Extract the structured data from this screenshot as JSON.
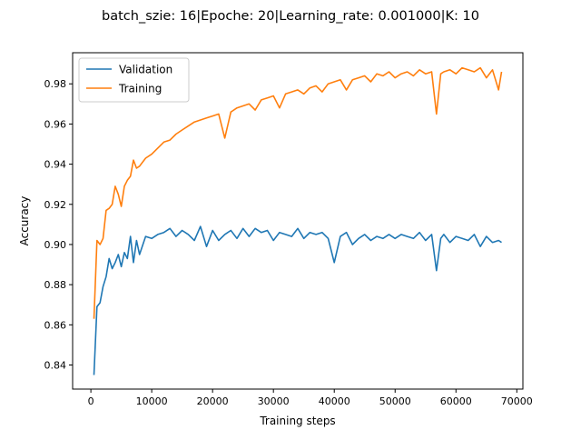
{
  "chart_data": {
    "type": "line",
    "title": "batch_szie: 16|Epoche: 20|Learning_rate: 0.001000|K: 10",
    "xlabel": "Training steps",
    "ylabel": "Accuracy",
    "xlim": [
      -3000,
      71000
    ],
    "ylim": [
      0.828,
      0.9955
    ],
    "xticks": [
      0,
      10000,
      20000,
      30000,
      40000,
      50000,
      60000,
      70000
    ],
    "xtick_labels": [
      "0",
      "10000",
      "20000",
      "30000",
      "40000",
      "50000",
      "60000",
      "70000"
    ],
    "yticks": [
      0.84,
      0.86,
      0.88,
      0.9,
      0.92,
      0.94,
      0.96,
      0.98
    ],
    "ytick_labels": [
      "0.84",
      "0.86",
      "0.88",
      "0.90",
      "0.92",
      "0.94",
      "0.96",
      "0.98"
    ],
    "grid": false,
    "legend_position": "upper-left",
    "series": [
      {
        "name": "Validation",
        "color": "#1f77b4",
        "x": [
          500,
          1000,
          1500,
          2000,
          2500,
          3000,
          3500,
          4000,
          4500,
          5000,
          5500,
          6000,
          6500,
          7000,
          7500,
          8000,
          9000,
          10000,
          11000,
          12000,
          13000,
          14000,
          15000,
          16000,
          17000,
          18000,
          19000,
          20000,
          21000,
          22000,
          23000,
          24000,
          25000,
          26000,
          27000,
          28000,
          29000,
          30000,
          31000,
          32000,
          33000,
          34000,
          35000,
          36000,
          37000,
          38000,
          39000,
          40000,
          41000,
          42000,
          43000,
          44000,
          45000,
          46000,
          47000,
          48000,
          49000,
          50000,
          51000,
          52000,
          53000,
          54000,
          55000,
          56000,
          56800,
          57500,
          58000,
          59000,
          60000,
          61000,
          62000,
          63000,
          64000,
          65000,
          66000,
          67000,
          67500
        ],
        "y": [
          0.835,
          0.869,
          0.871,
          0.879,
          0.884,
          0.893,
          0.888,
          0.891,
          0.895,
          0.889,
          0.896,
          0.893,
          0.904,
          0.891,
          0.902,
          0.895,
          0.904,
          0.903,
          0.905,
          0.906,
          0.908,
          0.904,
          0.907,
          0.905,
          0.902,
          0.909,
          0.899,
          0.907,
          0.902,
          0.905,
          0.907,
          0.903,
          0.908,
          0.904,
          0.908,
          0.906,
          0.907,
          0.902,
          0.906,
          0.905,
          0.904,
          0.908,
          0.903,
          0.906,
          0.905,
          0.906,
          0.903,
          0.891,
          0.904,
          0.906,
          0.9,
          0.903,
          0.905,
          0.902,
          0.904,
          0.903,
          0.905,
          0.903,
          0.905,
          0.904,
          0.903,
          0.906,
          0.902,
          0.905,
          0.887,
          0.903,
          0.905,
          0.901,
          0.904,
          0.903,
          0.902,
          0.905,
          0.899,
          0.904,
          0.901,
          0.902,
          0.901
        ]
      },
      {
        "name": "Training",
        "color": "#ff7f0e",
        "x": [
          500,
          1000,
          1500,
          2000,
          2500,
          3000,
          3500,
          4000,
          4500,
          5000,
          5500,
          6000,
          6500,
          7000,
          7500,
          8000,
          9000,
          10000,
          11000,
          12000,
          13000,
          14000,
          15000,
          16000,
          17000,
          18000,
          19000,
          20000,
          21000,
          22000,
          23000,
          24000,
          25000,
          26000,
          27000,
          28000,
          29000,
          30000,
          31000,
          32000,
          33000,
          34000,
          35000,
          36000,
          37000,
          38000,
          39000,
          40000,
          41000,
          42000,
          43000,
          44000,
          45000,
          46000,
          47000,
          48000,
          49000,
          50000,
          51000,
          52000,
          53000,
          54000,
          55000,
          56000,
          56800,
          57500,
          58000,
          59000,
          60000,
          61000,
          62000,
          63000,
          64000,
          65000,
          66000,
          67000,
          67500
        ],
        "y": [
          0.863,
          0.902,
          0.9,
          0.903,
          0.917,
          0.918,
          0.92,
          0.929,
          0.925,
          0.919,
          0.929,
          0.932,
          0.934,
          0.942,
          0.938,
          0.939,
          0.943,
          0.945,
          0.948,
          0.951,
          0.952,
          0.955,
          0.957,
          0.959,
          0.961,
          0.962,
          0.963,
          0.964,
          0.965,
          0.953,
          0.966,
          0.968,
          0.969,
          0.97,
          0.967,
          0.972,
          0.973,
          0.974,
          0.968,
          0.975,
          0.976,
          0.977,
          0.975,
          0.978,
          0.979,
          0.976,
          0.98,
          0.981,
          0.982,
          0.977,
          0.982,
          0.983,
          0.984,
          0.981,
          0.985,
          0.984,
          0.986,
          0.983,
          0.985,
          0.986,
          0.984,
          0.987,
          0.985,
          0.986,
          0.965,
          0.985,
          0.986,
          0.987,
          0.985,
          0.988,
          0.987,
          0.986,
          0.988,
          0.983,
          0.987,
          0.977,
          0.986
        ]
      }
    ]
  }
}
